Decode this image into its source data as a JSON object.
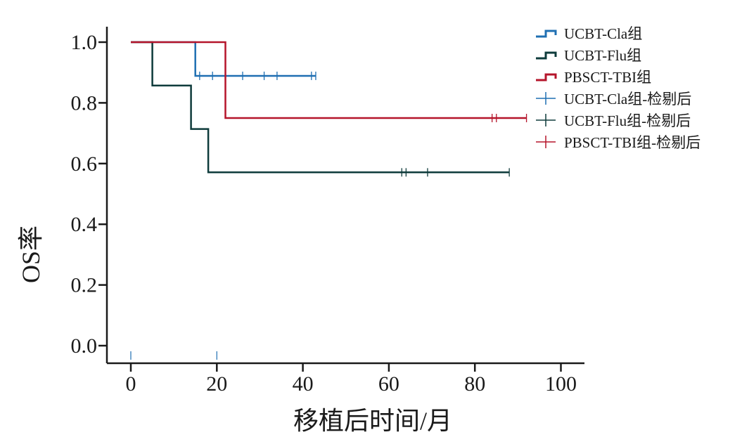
{
  "chart_data": {
    "type": "line",
    "subtype": "kaplan-meier-step",
    "title": "",
    "xlabel": "移植后时间/月",
    "ylabel": "OS率",
    "xlim": [
      -5,
      105
    ],
    "ylim": [
      -0.05,
      1.05
    ],
    "xticks": [
      0,
      20,
      40,
      60,
      80,
      100
    ],
    "yticks": [
      0.0,
      0.2,
      0.4,
      0.6,
      0.8,
      1.0
    ],
    "xtick_labels": [
      "0",
      "20",
      "40",
      "60",
      "80",
      "100"
    ],
    "ytick_labels": [
      "0.0",
      "0.2",
      "0.4",
      "0.6",
      "0.8",
      "1.0"
    ],
    "grid": false,
    "legend_position": "top-right",
    "series": [
      {
        "name": "UCBT-Cla组",
        "color": "#1f6fb2",
        "steps": [
          [
            0,
            1.0
          ],
          [
            15,
            1.0
          ],
          [
            15,
            0.889
          ],
          [
            43,
            0.889
          ]
        ],
        "censor_name": "UCBT-Cla组-检剔后",
        "censored": [
          [
            16,
            0.889
          ],
          [
            19,
            0.889
          ],
          [
            26,
            0.889
          ],
          [
            31,
            0.889
          ],
          [
            34,
            0.889
          ],
          [
            42,
            0.889
          ],
          [
            43,
            0.889
          ]
        ]
      },
      {
        "name": "UCBT-Flu组",
        "color": "#0e3b3b",
        "steps": [
          [
            0,
            1.0
          ],
          [
            5,
            1.0
          ],
          [
            5,
            0.857
          ],
          [
            14,
            0.857
          ],
          [
            14,
            0.714
          ],
          [
            18,
            0.714
          ],
          [
            18,
            0.571
          ],
          [
            88,
            0.571
          ]
        ],
        "censor_name": "UCBT-Flu组-检剔后",
        "censored": [
          [
            63,
            0.571
          ],
          [
            64,
            0.571
          ],
          [
            69,
            0.571
          ],
          [
            88,
            0.571
          ]
        ]
      },
      {
        "name": "PBSCT-TBI组",
        "color": "#b5152b",
        "steps": [
          [
            0,
            1.0
          ],
          [
            22,
            1.0
          ],
          [
            22,
            0.75
          ],
          [
            92,
            0.75
          ]
        ],
        "censor_name": "PBSCT-TBI组-检剔后",
        "censored": [
          [
            84,
            0.75
          ],
          [
            85,
            0.75
          ],
          [
            92,
            0.75
          ]
        ]
      }
    ],
    "extra_tick_marks": [
      [
        0,
        0.0
      ],
      [
        20,
        0.0
      ]
    ]
  }
}
